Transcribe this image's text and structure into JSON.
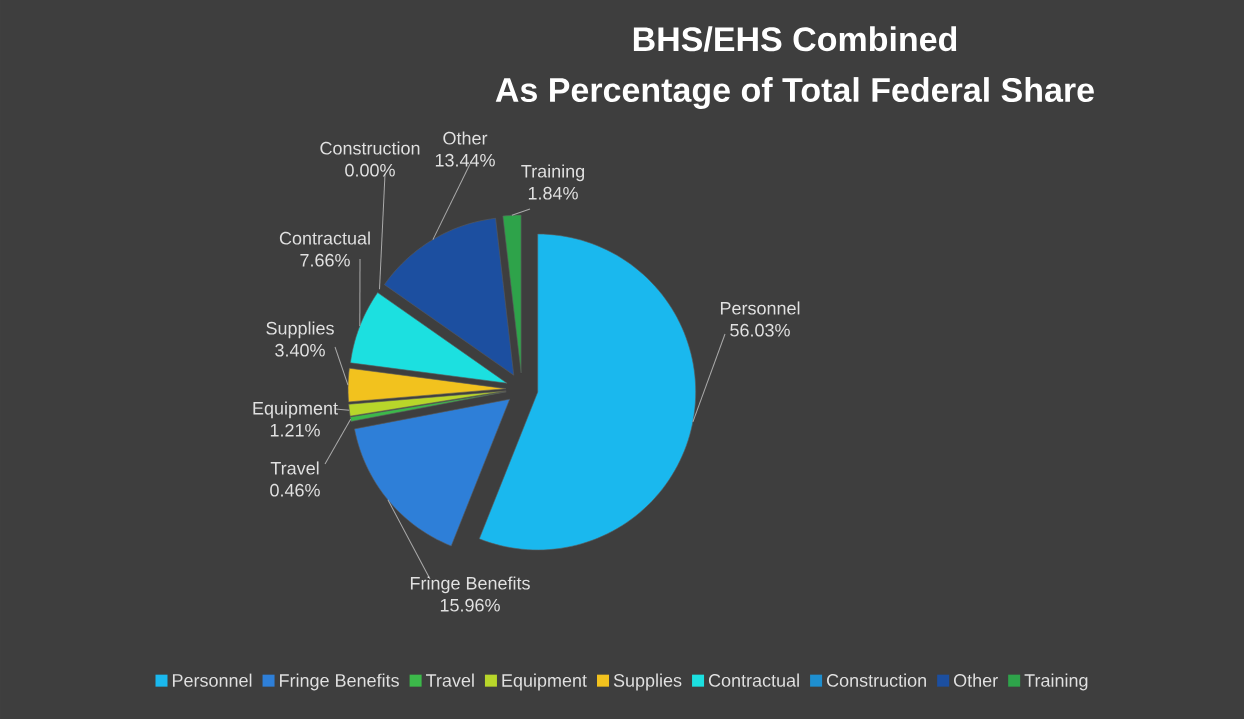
{
  "chart_data": {
    "type": "pie",
    "title": "BHS/EHS Combined",
    "subtitle": "As Percentage of Total Federal Share",
    "categories": [
      "Personnel",
      "Fringe Benefits",
      "Travel",
      "Equipment",
      "Supplies",
      "Contractual",
      "Construction",
      "Other",
      "Training"
    ],
    "values": [
      56.03,
      15.96,
      0.46,
      1.21,
      3.4,
      7.66,
      0.0,
      13.44,
      1.84
    ],
    "value_labels": [
      "56.03%",
      "15.96%",
      "0.46%",
      "1.21%",
      "3.40%",
      "7.66%",
      "0.00%",
      "13.44%",
      "1.84%"
    ],
    "colors": [
      "#1ab8ee",
      "#2e7fd8",
      "#3cb94a",
      "#b8d62a",
      "#f2c21e",
      "#1ce0e0",
      "#1e8fd0",
      "#1c4fa0",
      "#2ea34a"
    ],
    "legend": "bottom"
  }
}
